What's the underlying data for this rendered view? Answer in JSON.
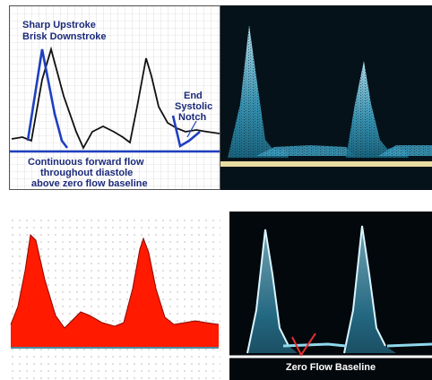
{
  "panels": {
    "top_left": {
      "label_upstroke_1": "Sharp Upstroke",
      "label_upstroke_2": "Brisk Downstroke",
      "label_notch_1": "End",
      "label_notch_2": "Systolic",
      "label_notch_3": "Notch",
      "label_diastole_1": "Continuous forward flow",
      "label_diastole_2": "throughout diastole",
      "label_diastole_3": "above zero flow baseline"
    },
    "bottom_right": {
      "label_baseline": "Zero Flow Baseline"
    }
  },
  "colors": {
    "annotation_blue": "#1f3fbf",
    "trace_black": "#111111",
    "doppler_cyan": "#7fd8f0",
    "baseline_yellow": "#e8dca0",
    "waveform_red": "#ff1a00",
    "notch_marker_red": "#e53030"
  }
}
